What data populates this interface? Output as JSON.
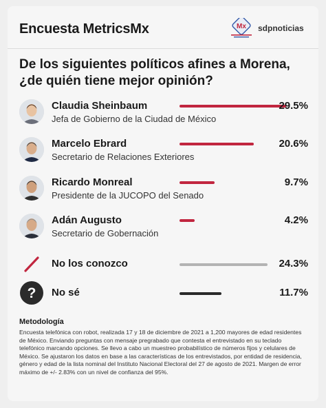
{
  "header": {
    "title": "Encuesta MetricsMx",
    "logo_text": "sdpnoticias"
  },
  "question": "De los siguientes políticos afines a Morena, ¿de quién tiene mejor opinión?",
  "colors": {
    "accent": "#c1263f",
    "gray_bar": "#b3b3b3",
    "dark_bar": "#2a2a2a"
  },
  "chart_data": {
    "type": "bar",
    "orientation": "horizontal",
    "categories": [
      "Claudia Sheinbaum",
      "Marcelo Ebrard",
      "Ricardo Monreal",
      "Adán Augusto",
      "No los conozco",
      "No sé"
    ],
    "subtitles": [
      "Jefa de Gobierno de la Ciudad de México",
      "Secretario de Relaciones Exteriores",
      "Presidente de la JUCOPO del Senado",
      "Secretario de Gobernación",
      "",
      ""
    ],
    "values": [
      29.5,
      20.6,
      9.7,
      4.2,
      24.3,
      11.7
    ],
    "labels": [
      "29.5%",
      "20.6%",
      "9.7%",
      "4.2%",
      "24.3%",
      "11.7%"
    ],
    "xlim": [
      0,
      29.5
    ],
    "bar_colors": [
      "#c1263f",
      "#c1263f",
      "#c1263f",
      "#c1263f",
      "#b3b3b3",
      "#2a2a2a"
    ],
    "icons": [
      "avatar",
      "avatar",
      "avatar",
      "avatar",
      "slash-icon",
      "question-icon"
    ]
  },
  "methodology": {
    "title": "Metodología",
    "text": "Encuesta telefónica con robot, realizada 17 y 18 de diciembre de 2021 a 1,200 mayores de edad residentes de México. Enviando preguntas con mensaje pregrabado que contesta el entrevistado en su teclado telefónico marcando opciones. Se llevo a cabo un muestreo probabilístico de números fijos y celulares de México. Se ajustaron los datos en base a las características de los entrevistados, por entidad de residencia, género y edad de la lista nominal del Instituto Nacional Electoral del 27 de agosto de 2021. Margen de error máximo de +/- 2.83% con un nivel de confianza del 95%."
  }
}
